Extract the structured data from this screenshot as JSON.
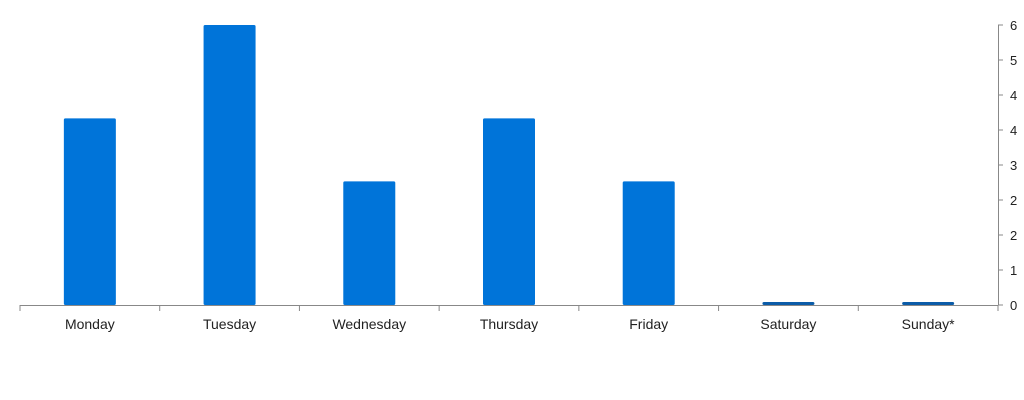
{
  "chart_data": {
    "type": "bar",
    "categories": [
      "Monday",
      "Tuesday",
      "Wednesday",
      "Thursday",
      "Friday",
      "Saturday",
      "Sunday*"
    ],
    "values": [
      4.0,
      6.0,
      2.65,
      4.0,
      2.65,
      0.05,
      0.05
    ],
    "y_tick_labels": [
      "0",
      "1",
      "2",
      "2",
      "3",
      "4",
      "4",
      "5",
      "6"
    ],
    "ylim": [
      0,
      6
    ],
    "y_axis_side": "right",
    "grid": false,
    "legend": "none",
    "colors": {
      "bar": "#0074D9",
      "bar_small": "#0B5CA8",
      "axis": "#888888",
      "text": "#222222"
    }
  }
}
